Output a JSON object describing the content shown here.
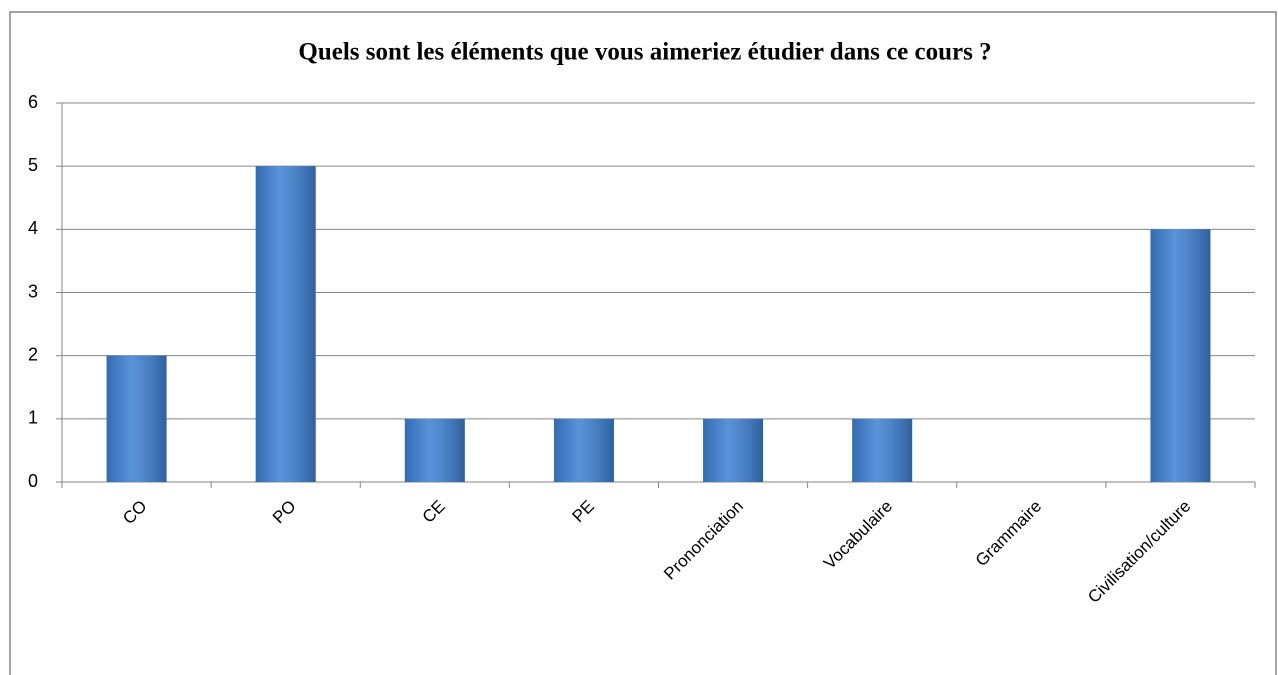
{
  "chart_data": {
    "type": "bar",
    "title": "Quels sont les éléments que vous aimeriez étudier dans ce cours ?",
    "categories": [
      "CO",
      "PO",
      "CE",
      "PE",
      "Prononciation",
      "Vocabulaire",
      "Grammaire",
      "Civilisation/culture"
    ],
    "values": [
      2,
      5,
      1,
      1,
      1,
      1,
      0,
      4
    ],
    "color": "#3b7fd2",
    "ylim": [
      0,
      6
    ],
    "yticks": [
      0,
      1,
      2,
      3,
      4,
      5,
      6
    ],
    "grid": true
  }
}
